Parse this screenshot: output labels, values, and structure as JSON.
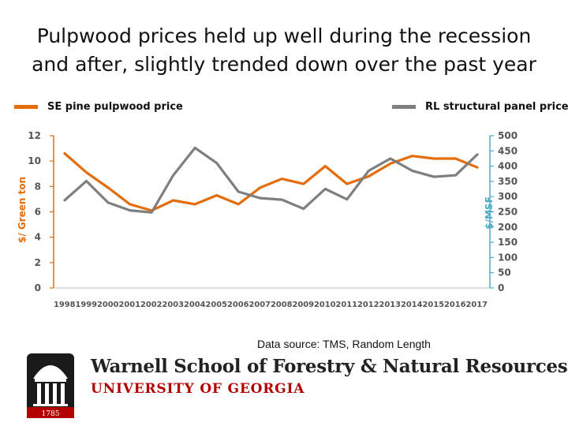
{
  "title_line1": "Pulpwood prices held up well during the recession",
  "title_line2": "and after, slightly trended down over the past year",
  "source_note": "Data source: TMS, Random Length",
  "branding": {
    "school": "Warnell School of Forestry & Natural Resources",
    "university": "UNIVERSITY OF GEORGIA",
    "seal_year": "1785"
  },
  "colors": {
    "orange": "#e46c0a",
    "gray": "#7f7f7f",
    "red": "#b30000",
    "axis_right": "#4bacc6"
  },
  "chart_data": {
    "type": "line",
    "title": "Pulpwood prices held up well during the recession and after, slightly trended down over the past year",
    "x": [
      "1998",
      "1999",
      "2000",
      "2001",
      "2002",
      "2003",
      "2004",
      "2005",
      "2006",
      "2007",
      "2008",
      "2009",
      "2010",
      "2011",
      "2012",
      "2013",
      "2014",
      "2015",
      "2016",
      "2017"
    ],
    "xtick_text": "19981999200020012002200320042005200620072008200920102011201220132014201520162017",
    "ylabel_left": "$/ Green ton",
    "ylabel_right": "$/MSF",
    "ylim_left": [
      0,
      12
    ],
    "ylim_right": [
      0,
      500
    ],
    "yticks_left": [
      "0",
      "2",
      "4",
      "6",
      "8",
      "10",
      "12"
    ],
    "yticks_right": [
      "0",
      "50",
      "100",
      "150",
      "200",
      "250",
      "300",
      "350",
      "400",
      "450",
      "500"
    ],
    "legend_position": "top",
    "grid": false,
    "series": [
      {
        "name": "SE pine pulpwood price",
        "axis": "left",
        "color": "#e46c0a",
        "values": [
          10.6,
          9.1,
          7.9,
          6.6,
          6.1,
          6.9,
          6.6,
          7.3,
          6.6,
          7.9,
          8.6,
          8.2,
          9.6,
          8.2,
          8.8,
          9.8,
          10.4,
          10.2,
          10.2,
          9.5
        ]
      },
      {
        "name": "RL structural panel price",
        "axis": "right",
        "color": "#7f7f7f",
        "values": [
          288,
          351,
          280,
          255,
          248,
          370,
          460,
          410,
          316,
          295,
          290,
          260,
          325,
          291,
          385,
          425,
          385,
          365,
          370,
          438
        ]
      }
    ]
  }
}
